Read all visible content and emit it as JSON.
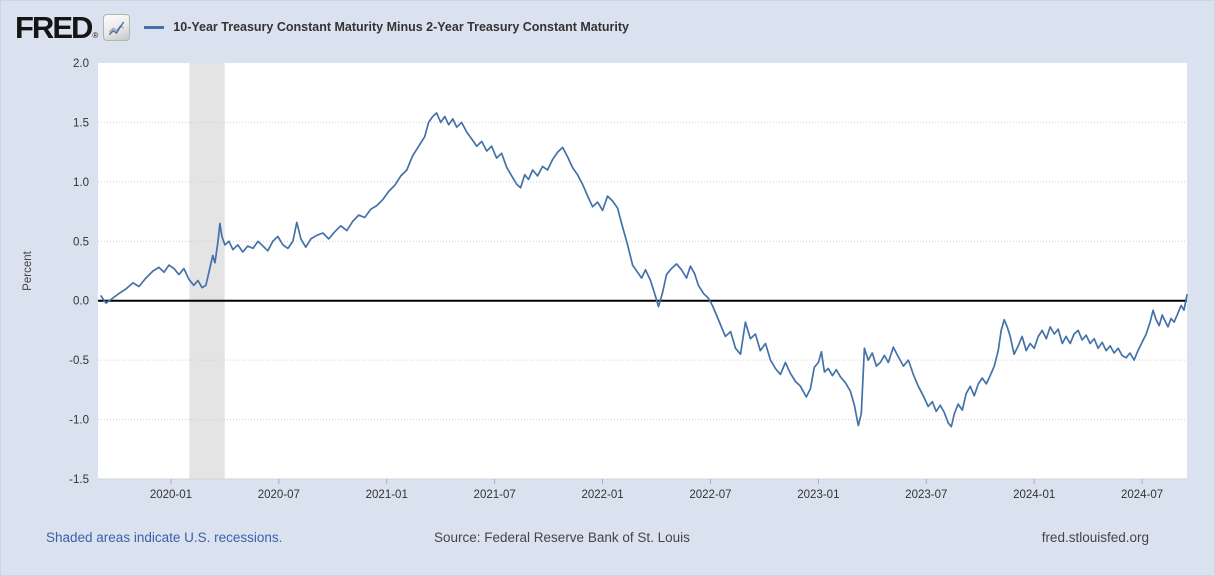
{
  "header": {
    "logo_text": "FRED",
    "registered_mark": "®",
    "logo_icon": "line-chart-zigzag",
    "legend_label": "10-Year Treasury Constant Maturity Minus 2-Year Treasury Constant Maturity"
  },
  "footer": {
    "recession_note": "Shaded areas indicate U.S. recessions.",
    "source": "Source: Federal Reserve Bank of St. Louis",
    "site": "fred.stlouisfed.org"
  },
  "colors": {
    "background": "#dbe2ef",
    "plot_bg": "#ffffff",
    "line": "#4472a8",
    "zero_line": "#000000",
    "gridline": "#cfcfcf",
    "recession_band": "#e4e4e4",
    "text": "#333333",
    "muted_text": "#444444",
    "link": "#3b5fa9",
    "tick": "#a3aec5",
    "plot_bottom_border": "#cfd4de"
  },
  "chart_data": {
    "type": "line",
    "title": "10-Year Treasury Constant Maturity Minus 2-Year Treasury Constant Maturity",
    "xlabel": "",
    "ylabel": "Percent",
    "ylim": [
      -1.5,
      2.0
    ],
    "y_ticks": [
      2.0,
      1.5,
      1.0,
      0.5,
      0.0,
      -0.5,
      -1.0,
      -1.5
    ],
    "grid": "dotted-horizontal",
    "legend_position": "top",
    "zero_line": 0.0,
    "x_range": [
      2019.662,
      2024.708
    ],
    "x_ticks": [
      {
        "v": 2020.0,
        "label": "2020-01"
      },
      {
        "v": 2020.5,
        "label": "2020-07"
      },
      {
        "v": 2021.0,
        "label": "2021-01"
      },
      {
        "v": 2021.5,
        "label": "2021-07"
      },
      {
        "v": 2022.0,
        "label": "2022-01"
      },
      {
        "v": 2022.5,
        "label": "2022-07"
      },
      {
        "v": 2023.0,
        "label": "2023-01"
      },
      {
        "v": 2023.5,
        "label": "2023-07"
      },
      {
        "v": 2024.0,
        "label": "2024-01"
      },
      {
        "v": 2024.5,
        "label": "2024-07"
      }
    ],
    "recession_bands": [
      [
        2020.085,
        2020.249
      ]
    ],
    "series": [
      {
        "name": "10-Year Treasury Constant Maturity Minus 2-Year Treasury Constant Maturity",
        "units": "Percent",
        "x": [
          2019.676,
          2019.699,
          2019.722,
          2019.759,
          2019.792,
          2019.824,
          2019.852,
          2019.884,
          2019.917,
          2019.944,
          2019.968,
          2019.991,
          2020.014,
          2020.037,
          2020.06,
          2020.083,
          2020.106,
          2020.125,
          2020.144,
          2020.162,
          2020.181,
          2020.194,
          2020.204,
          2020.218,
          2020.227,
          2020.236,
          2020.25,
          2020.269,
          2020.287,
          2020.31,
          2020.333,
          2020.356,
          2020.38,
          2020.403,
          2020.426,
          2020.449,
          2020.472,
          2020.495,
          2020.519,
          2020.542,
          2020.565,
          2020.583,
          2020.602,
          2020.625,
          2020.648,
          2020.676,
          2020.704,
          2020.731,
          2020.759,
          2020.787,
          2020.815,
          2020.843,
          2020.87,
          2020.898,
          2020.926,
          2020.954,
          2020.981,
          2021.009,
          2021.037,
          2021.065,
          2021.093,
          2021.12,
          2021.148,
          2021.176,
          2021.194,
          2021.213,
          2021.231,
          2021.25,
          2021.269,
          2021.287,
          2021.306,
          2021.324,
          2021.347,
          2021.37,
          2021.394,
          2021.417,
          2021.44,
          2021.463,
          2021.486,
          2021.509,
          2021.532,
          2021.556,
          2021.579,
          2021.602,
          2021.62,
          2021.639,
          2021.657,
          2021.676,
          2021.699,
          2021.722,
          2021.745,
          2021.769,
          2021.792,
          2021.815,
          2021.838,
          2021.861,
          2021.884,
          2021.907,
          2021.931,
          2021.954,
          2021.977,
          2022.0,
          2022.023,
          2022.046,
          2022.069,
          2022.093,
          2022.116,
          2022.139,
          2022.162,
          2022.181,
          2022.199,
          2022.222,
          2022.245,
          2022.259,
          2022.278,
          2022.296,
          2022.319,
          2022.343,
          2022.366,
          2022.389,
          2022.407,
          2022.426,
          2022.444,
          2022.468,
          2022.491,
          2022.509,
          2022.528,
          2022.546,
          2022.569,
          2022.593,
          2022.616,
          2022.639,
          2022.662,
          2022.685,
          2022.708,
          2022.731,
          2022.755,
          2022.778,
          2022.801,
          2022.824,
          2022.847,
          2022.87,
          2022.894,
          2022.917,
          2022.944,
          2022.963,
          2022.981,
          2023.0,
          2023.014,
          2023.028,
          2023.046,
          2023.065,
          2023.083,
          2023.102,
          2023.125,
          2023.148,
          2023.167,
          2023.185,
          2023.199,
          2023.213,
          2023.231,
          2023.25,
          2023.269,
          2023.287,
          2023.306,
          2023.324,
          2023.347,
          2023.37,
          2023.394,
          2023.417,
          2023.44,
          2023.463,
          2023.486,
          2023.509,
          2023.528,
          2023.546,
          2023.565,
          2023.583,
          2023.602,
          2023.616,
          2023.63,
          2023.648,
          2023.667,
          2023.685,
          2023.704,
          2023.722,
          2023.741,
          2023.759,
          2023.778,
          2023.796,
          2023.815,
          2023.833,
          2023.847,
          2023.861,
          2023.875,
          2023.889,
          2023.907,
          2023.926,
          2023.944,
          2023.963,
          2023.981,
          2024.0,
          2024.019,
          2024.037,
          2024.056,
          2024.074,
          2024.093,
          2024.111,
          2024.13,
          2024.148,
          2024.167,
          2024.185,
          2024.204,
          2024.222,
          2024.241,
          2024.259,
          2024.278,
          2024.296,
          2024.315,
          2024.333,
          2024.352,
          2024.37,
          2024.389,
          2024.407,
          2024.426,
          2024.444,
          2024.463,
          2024.481,
          2024.5,
          2024.519,
          2024.537,
          2024.551,
          2024.565,
          2024.579,
          2024.593,
          2024.606,
          2024.62,
          2024.634,
          2024.648,
          2024.667,
          2024.681,
          2024.694,
          2024.708
        ],
        "values": [
          0.04,
          -0.02,
          0.01,
          0.06,
          0.1,
          0.15,
          0.12,
          0.19,
          0.25,
          0.28,
          0.24,
          0.3,
          0.27,
          0.22,
          0.27,
          0.18,
          0.13,
          0.17,
          0.11,
          0.13,
          0.28,
          0.38,
          0.32,
          0.5,
          0.65,
          0.54,
          0.47,
          0.5,
          0.43,
          0.47,
          0.41,
          0.46,
          0.44,
          0.5,
          0.46,
          0.42,
          0.5,
          0.54,
          0.47,
          0.44,
          0.5,
          0.66,
          0.52,
          0.45,
          0.52,
          0.55,
          0.57,
          0.52,
          0.58,
          0.63,
          0.59,
          0.67,
          0.72,
          0.7,
          0.77,
          0.8,
          0.85,
          0.92,
          0.97,
          1.05,
          1.1,
          1.22,
          1.3,
          1.38,
          1.5,
          1.55,
          1.58,
          1.5,
          1.55,
          1.48,
          1.53,
          1.46,
          1.5,
          1.42,
          1.36,
          1.3,
          1.34,
          1.26,
          1.3,
          1.2,
          1.24,
          1.12,
          1.05,
          0.98,
          0.95,
          1.06,
          1.02,
          1.1,
          1.05,
          1.13,
          1.1,
          1.19,
          1.25,
          1.29,
          1.21,
          1.12,
          1.06,
          0.98,
          0.88,
          0.79,
          0.83,
          0.76,
          0.88,
          0.84,
          0.78,
          0.62,
          0.47,
          0.3,
          0.24,
          0.19,
          0.26,
          0.17,
          0.04,
          -0.05,
          0.07,
          0.22,
          0.27,
          0.31,
          0.26,
          0.19,
          0.29,
          0.23,
          0.13,
          0.06,
          0.02,
          -0.04,
          -0.12,
          -0.2,
          -0.3,
          -0.26,
          -0.4,
          -0.45,
          -0.18,
          -0.32,
          -0.28,
          -0.42,
          -0.36,
          -0.5,
          -0.57,
          -0.62,
          -0.52,
          -0.61,
          -0.68,
          -0.72,
          -0.81,
          -0.74,
          -0.56,
          -0.52,
          -0.43,
          -0.6,
          -0.57,
          -0.63,
          -0.58,
          -0.64,
          -0.69,
          -0.76,
          -0.88,
          -1.05,
          -0.95,
          -0.4,
          -0.5,
          -0.44,
          -0.55,
          -0.52,
          -0.46,
          -0.52,
          -0.39,
          -0.47,
          -0.55,
          -0.5,
          -0.62,
          -0.72,
          -0.8,
          -0.89,
          -0.85,
          -0.93,
          -0.88,
          -0.94,
          -1.03,
          -1.06,
          -0.95,
          -0.87,
          -0.92,
          -0.78,
          -0.72,
          -0.8,
          -0.7,
          -0.65,
          -0.7,
          -0.63,
          -0.55,
          -0.42,
          -0.25,
          -0.16,
          -0.22,
          -0.3,
          -0.45,
          -0.38,
          -0.3,
          -0.42,
          -0.36,
          -0.4,
          -0.3,
          -0.25,
          -0.32,
          -0.22,
          -0.28,
          -0.24,
          -0.36,
          -0.3,
          -0.36,
          -0.28,
          -0.25,
          -0.33,
          -0.29,
          -0.36,
          -0.32,
          -0.4,
          -0.35,
          -0.42,
          -0.38,
          -0.44,
          -0.4,
          -0.46,
          -0.48,
          -0.44,
          -0.5,
          -0.42,
          -0.35,
          -0.28,
          -0.18,
          -0.08,
          -0.16,
          -0.21,
          -0.12,
          -0.17,
          -0.22,
          -0.15,
          -0.18,
          -0.1,
          -0.04,
          -0.08,
          0.05
        ]
      }
    ]
  }
}
